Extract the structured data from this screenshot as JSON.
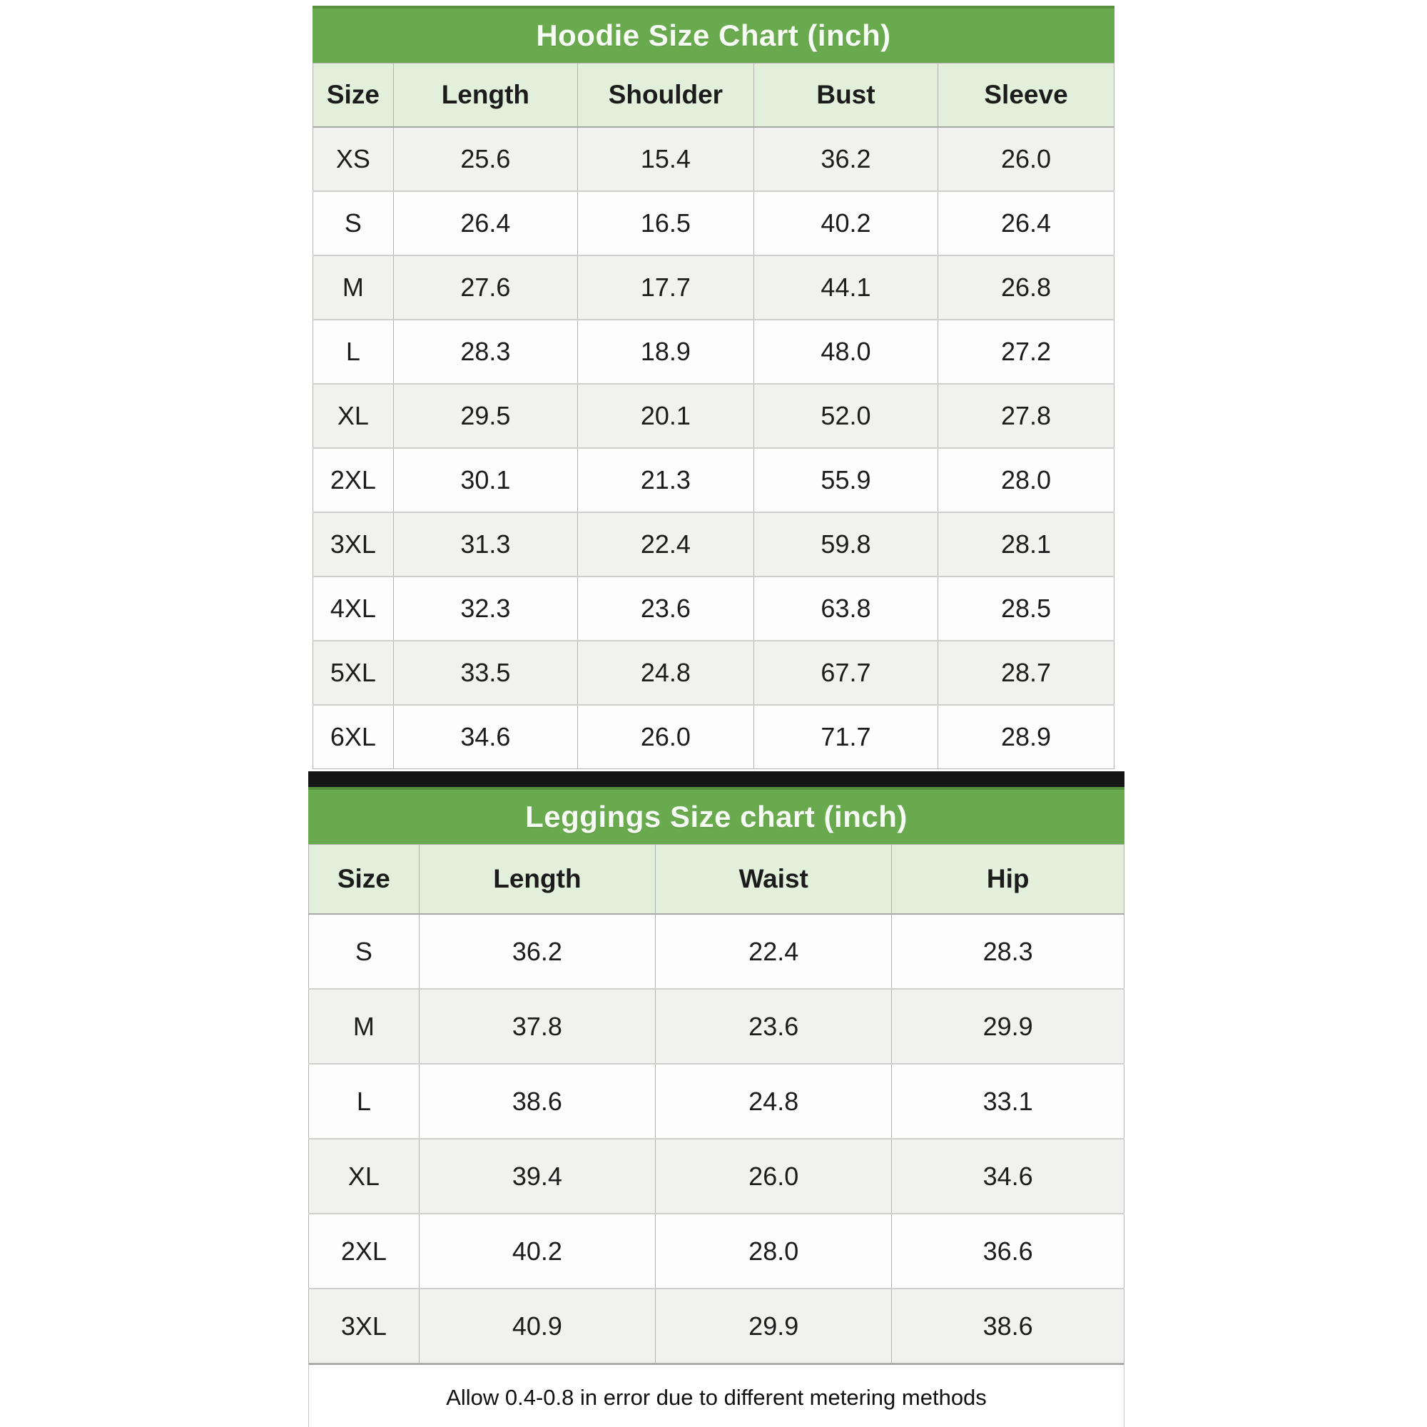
{
  "chart_data": [
    {
      "type": "table",
      "title": "Hoodie Size Chart (inch)",
      "columns": [
        "Size",
        "Length",
        "Shoulder",
        "Bust",
        "Sleeve"
      ],
      "rows": [
        [
          "XS",
          "25.6",
          "15.4",
          "36.2",
          "26.0"
        ],
        [
          "S",
          "26.4",
          "16.5",
          "40.2",
          "26.4"
        ],
        [
          "M",
          "27.6",
          "17.7",
          "44.1",
          "26.8"
        ],
        [
          "L",
          "28.3",
          "18.9",
          "48.0",
          "27.2"
        ],
        [
          "XL",
          "29.5",
          "20.1",
          "52.0",
          "27.8"
        ],
        [
          "2XL",
          "30.1",
          "21.3",
          "55.9",
          "28.0"
        ],
        [
          "3XL",
          "31.3",
          "22.4",
          "59.8",
          "28.1"
        ],
        [
          "4XL",
          "32.3",
          "23.6",
          "63.8",
          "28.5"
        ],
        [
          "5XL",
          "33.5",
          "24.8",
          "67.7",
          "28.7"
        ],
        [
          "6XL",
          "34.6",
          "26.0",
          "71.7",
          "28.9"
        ]
      ]
    },
    {
      "type": "table",
      "title": "Leggings Size chart (inch)",
      "columns": [
        "Size",
        "Length",
        "Waist",
        "Hip"
      ],
      "rows": [
        [
          "S",
          "36.2",
          "22.4",
          "28.3"
        ],
        [
          "M",
          "37.8",
          "23.6",
          "29.9"
        ],
        [
          "L",
          "38.6",
          "24.8",
          "33.1"
        ],
        [
          "XL",
          "39.4",
          "26.0",
          "34.6"
        ],
        [
          "2XL",
          "40.2",
          "28.0",
          "36.6"
        ],
        [
          "3XL",
          "40.9",
          "29.9",
          "38.6"
        ]
      ]
    }
  ],
  "footnote": "Allow 0.4-0.8 in error due to different metering methods",
  "colors": {
    "title_bar_green": "#69aa4f",
    "title_bar_edge": "#55913d",
    "column_header_green": "#e2efda",
    "row_alt_gray": "#f1f1ef",
    "row_white": "#fdfdfd",
    "divider_black": "#151515",
    "border_gray": "#b3b3b1",
    "text_dark": "#1c1c1c"
  }
}
